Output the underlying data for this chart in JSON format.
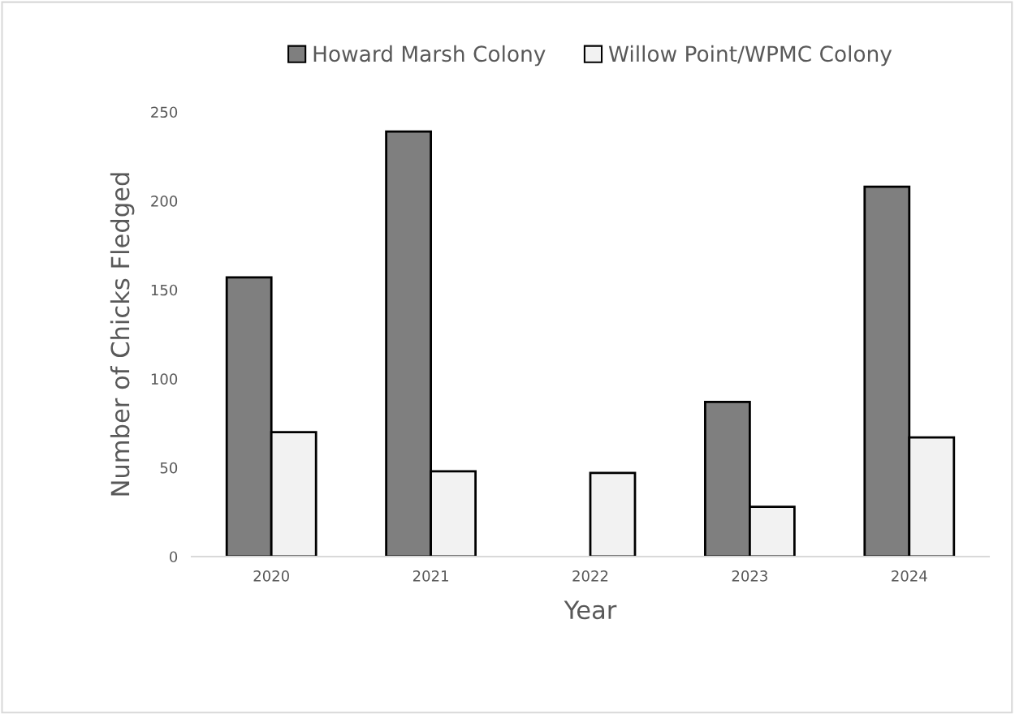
{
  "chart_data": {
    "type": "bar",
    "xlabel": "Year",
    "ylabel": "Number of Chicks Fledged",
    "categories": [
      "2020",
      "2021",
      "2022",
      "2023",
      "2024"
    ],
    "series": [
      {
        "name": "Howard Marsh Colony",
        "color": "#7f7f7f",
        "values": [
          157,
          239,
          null,
          87,
          208
        ]
      },
      {
        "name": "Willow Point/WPMC Colony",
        "color": "#f2f2f2",
        "values": [
          70,
          48,
          47,
          28,
          67
        ]
      }
    ],
    "ylim": [
      0,
      250
    ],
    "yticks": [
      0,
      50,
      100,
      150,
      200,
      250
    ],
    "grid": false,
    "legend": "top"
  }
}
